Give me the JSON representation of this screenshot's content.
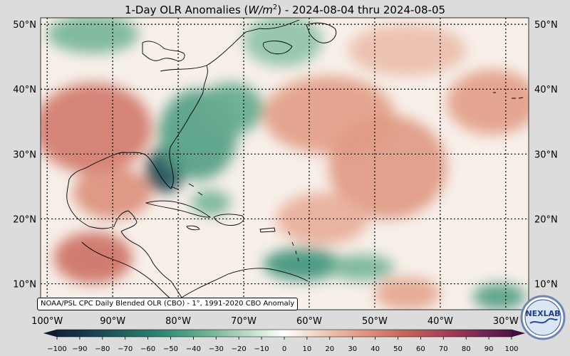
{
  "header": {
    "title_prefix": "1-Day OLR Anomalies (",
    "title_unit_base": "W/m",
    "title_unit_exp": "2",
    "title_suffix": ") - 2024-08-04 thru 2024-08-05"
  },
  "map": {
    "lat_labels": [
      "50°N",
      "40°N",
      "30°N",
      "20°N",
      "10°N"
    ],
    "lon_labels": [
      "100°W",
      "90°W",
      "80°W",
      "70°W",
      "60°W",
      "50°W",
      "40°W",
      "30°W"
    ],
    "lat_values": [
      50,
      40,
      30,
      20,
      10
    ],
    "lon_values": [
      -100,
      -90,
      -80,
      -70,
      -60,
      -50,
      -40,
      -30
    ],
    "lat_range": [
      6,
      51
    ],
    "lon_range": [
      -101,
      -26.5
    ],
    "gridlines": true,
    "ocean_tint": "#f7efe9"
  },
  "anomaly_regions": [
    {
      "name": "florida-deep-negative",
      "lon": -82,
      "lat": 27.5,
      "r_lon": 3,
      "r_lat": 3.5,
      "value": -75
    },
    {
      "name": "east-coast-negative-band",
      "lon": -77,
      "lat": 33,
      "r_lon": 6,
      "r_lat": 7,
      "value": -40
    },
    {
      "name": "carolinas-negative",
      "lon": -72,
      "lat": 37,
      "r_lon": 5,
      "r_lat": 4,
      "value": -35
    },
    {
      "name": "canada-negative",
      "lon": -93,
      "lat": 48.5,
      "r_lon": 7,
      "r_lat": 3,
      "value": -30
    },
    {
      "name": "labrador-negative",
      "lon": -64,
      "lat": 47.5,
      "r_lon": 6,
      "r_lat": 4,
      "value": -25
    },
    {
      "name": "caribbean-negative",
      "lon": -61,
      "lat": 13,
      "r_lon": 6,
      "r_lat": 2.5,
      "value": -45
    },
    {
      "name": "atlantic-itcz-negative",
      "lon": -52,
      "lat": 12.5,
      "r_lon": 5,
      "r_lat": 2,
      "value": -30
    },
    {
      "name": "east-atlantic-negative",
      "lon": -31,
      "lat": 8,
      "r_lon": 4,
      "r_lat": 2,
      "value": -40
    },
    {
      "name": "bahamas-negative",
      "lon": -75,
      "lat": 22.5,
      "r_lon": 3,
      "r_lat": 2,
      "value": -30
    },
    {
      "name": "central-us-positive",
      "lon": -93,
      "lat": 34,
      "r_lon": 9,
      "r_lat": 7,
      "value": 42
    },
    {
      "name": "gulf-positive",
      "lon": -90,
      "lat": 24,
      "r_lon": 6,
      "r_lat": 4,
      "value": 35
    },
    {
      "name": "mexico-positive",
      "lon": -93,
      "lat": 14,
      "r_lon": 6,
      "r_lat": 4,
      "value": 45
    },
    {
      "name": "midatlantic-ocean-positive",
      "lon": -57,
      "lat": 36,
      "r_lon": 10,
      "r_lat": 6,
      "value": 30
    },
    {
      "name": "central-atlantic-positive",
      "lon": -48,
      "lat": 28,
      "r_lon": 9,
      "r_lat": 8,
      "value": 32
    },
    {
      "name": "east-atlantic-positive",
      "lon": -32,
      "lat": 38,
      "r_lon": 7,
      "r_lat": 5,
      "value": 30
    },
    {
      "name": "subtropical-positive",
      "lon": -58,
      "lat": 20,
      "r_lon": 7,
      "r_lat": 4,
      "value": 25
    },
    {
      "name": "north-atlantic-positive",
      "lon": -45,
      "lat": 46,
      "r_lon": 9,
      "r_lat": 4,
      "value": 20
    },
    {
      "name": "southern-positive",
      "lon": -45,
      "lat": 8.5,
      "r_lon": 5,
      "r_lat": 2.5,
      "value": 28
    }
  ],
  "colorbar": {
    "ticks": [
      -100,
      -90,
      -80,
      -70,
      -60,
      -50,
      -40,
      -30,
      -20,
      -10,
      0,
      10,
      20,
      30,
      40,
      50,
      60,
      70,
      80,
      90,
      100
    ],
    "stops": [
      {
        "value": -100,
        "color": "#101c2e"
      },
      {
        "value": -85,
        "color": "#16354a"
      },
      {
        "value": -70,
        "color": "#1f5a5c"
      },
      {
        "value": -50,
        "color": "#2f8a74"
      },
      {
        "value": -30,
        "color": "#78b697"
      },
      {
        "value": -10,
        "color": "#d4e8da"
      },
      {
        "value": 0,
        "color": "#ffffff"
      },
      {
        "value": 10,
        "color": "#f5ddd2"
      },
      {
        "value": 30,
        "color": "#e3a088"
      },
      {
        "value": 50,
        "color": "#c7645a"
      },
      {
        "value": 70,
        "color": "#9e3a55"
      },
      {
        "value": 85,
        "color": "#6d2152"
      },
      {
        "value": 100,
        "color": "#3d0f3a"
      }
    ]
  },
  "footer": {
    "source_note": "NOAA/PSL CPC Daily Blended OLR (CBO) - 1°, 1991-2020 CBO Anomaly",
    "logo_text": "NEXLAB"
  },
  "colors": {
    "background": "#dcdcdc",
    "coastline": "#000000",
    "grid": "#000000"
  }
}
